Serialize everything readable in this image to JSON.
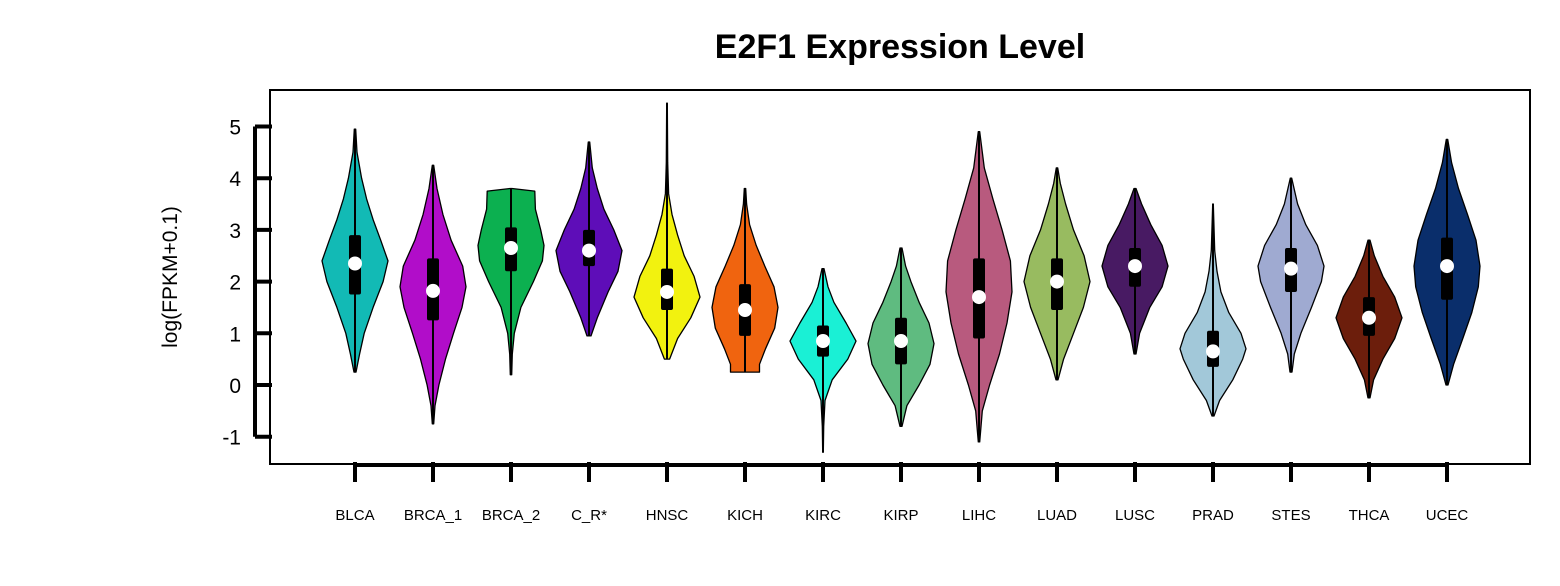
{
  "chart_data": {
    "type": "violin",
    "title": "E2F1 Expression Level",
    "ylabel": "log(FPKM+0.1)",
    "xlabel": "",
    "ylim": [
      -1.55,
      5.7
    ],
    "yticks": [
      -1,
      0,
      1,
      2,
      3,
      4,
      5
    ],
    "categories": [
      "BLCA",
      "BRCA_1",
      "BRCA_2",
      "C_R*",
      "HNSC",
      "KICH",
      "KIRC",
      "KIRP",
      "LIHC",
      "LUAD",
      "LUSC",
      "PRAD",
      "STES",
      "THCA",
      "UCEC"
    ],
    "colors": [
      "#12BAB5",
      "#B10DC9",
      "#0CB050",
      "#5E0DB8",
      "#F2F20F",
      "#F0640F",
      "#1AF0D5",
      "#5FBB80",
      "#B85A7E",
      "#98BB60",
      "#481A63",
      "#A2C8D9",
      "#9FAAD1",
      "#6C1E0C",
      "#0A2E6B"
    ],
    "series": [
      {
        "category": "BLCA",
        "min": 0.25,
        "max": 4.95,
        "q1": 1.75,
        "median": 2.35,
        "q3": 2.9,
        "whisker_low": 0.25,
        "whisker_high": 4.95,
        "density": [
          [
            0.25,
            0.03
          ],
          [
            0.6,
            0.14
          ],
          [
            1.0,
            0.28
          ],
          [
            1.5,
            0.55
          ],
          [
            2.0,
            0.85
          ],
          [
            2.4,
            1.0
          ],
          [
            2.8,
            0.78
          ],
          [
            3.2,
            0.55
          ],
          [
            3.6,
            0.35
          ],
          [
            4.0,
            0.2
          ],
          [
            4.5,
            0.06
          ],
          [
            4.95,
            0.02
          ]
        ]
      },
      {
        "category": "BRCA_1",
        "min": -0.75,
        "max": 4.25,
        "q1": 1.25,
        "median": 1.82,
        "q3": 2.45,
        "whisker_low": -0.75,
        "whisker_high": 4.25,
        "density": [
          [
            -0.75,
            0.02
          ],
          [
            -0.4,
            0.06
          ],
          [
            0.0,
            0.18
          ],
          [
            0.5,
            0.38
          ],
          [
            1.0,
            0.62
          ],
          [
            1.5,
            0.88
          ],
          [
            1.9,
            1.0
          ],
          [
            2.3,
            0.9
          ],
          [
            2.8,
            0.55
          ],
          [
            3.3,
            0.3
          ],
          [
            3.8,
            0.12
          ],
          [
            4.25,
            0.02
          ]
        ]
      },
      {
        "category": "BRCA_2",
        "min": 0.2,
        "max": 3.8,
        "q1": 2.2,
        "median": 2.65,
        "q3": 3.05,
        "whisker_low": 0.2,
        "whisker_high": 3.8,
        "density": [
          [
            0.2,
            0.02
          ],
          [
            0.6,
            0.04
          ],
          [
            1.0,
            0.1
          ],
          [
            1.5,
            0.3
          ],
          [
            2.0,
            0.68
          ],
          [
            2.4,
            0.95
          ],
          [
            2.7,
            1.0
          ],
          [
            3.0,
            0.9
          ],
          [
            3.4,
            0.74
          ],
          [
            3.75,
            0.72
          ],
          [
            3.8,
            0.03
          ]
        ]
      },
      {
        "category": "C_R*",
        "min": 0.95,
        "max": 4.7,
        "q1": 2.3,
        "median": 2.6,
        "q3": 3.0,
        "whisker_low": 0.95,
        "whisker_high": 4.7,
        "density": [
          [
            0.95,
            0.06
          ],
          [
            1.3,
            0.25
          ],
          [
            1.8,
            0.58
          ],
          [
            2.2,
            0.88
          ],
          [
            2.6,
            1.0
          ],
          [
            3.0,
            0.75
          ],
          [
            3.4,
            0.45
          ],
          [
            3.8,
            0.25
          ],
          [
            4.2,
            0.1
          ],
          [
            4.7,
            0.02
          ]
        ]
      },
      {
        "category": "HNSC",
        "min": 0.5,
        "max": 5.45,
        "q1": 1.45,
        "median": 1.8,
        "q3": 2.25,
        "whisker_low": 0.5,
        "whisker_high": 5.45,
        "density": [
          [
            0.5,
            0.08
          ],
          [
            0.9,
            0.32
          ],
          [
            1.3,
            0.72
          ],
          [
            1.7,
            1.0
          ],
          [
            2.1,
            0.82
          ],
          [
            2.5,
            0.52
          ],
          [
            2.9,
            0.32
          ],
          [
            3.3,
            0.15
          ],
          [
            3.7,
            0.05
          ],
          [
            4.3,
            0.02
          ],
          [
            5.45,
            0.01
          ]
        ]
      },
      {
        "category": "KICH",
        "min": 0.25,
        "max": 3.8,
        "q1": 0.95,
        "median": 1.45,
        "q3": 1.95,
        "whisker_low": 0.25,
        "whisker_high": 3.8,
        "density": [
          [
            0.25,
            0.44
          ],
          [
            0.4,
            0.44
          ],
          [
            0.7,
            0.62
          ],
          [
            1.1,
            0.9
          ],
          [
            1.5,
            1.0
          ],
          [
            1.9,
            0.88
          ],
          [
            2.3,
            0.6
          ],
          [
            2.7,
            0.34
          ],
          [
            3.1,
            0.14
          ],
          [
            3.5,
            0.05
          ],
          [
            3.8,
            0.02
          ]
        ]
      },
      {
        "category": "KIRC",
        "min": -1.3,
        "max": 2.25,
        "q1": 0.55,
        "median": 0.85,
        "q3": 1.15,
        "whisker_low": -1.3,
        "whisker_high": 2.25,
        "density": [
          [
            -1.3,
            0.01
          ],
          [
            -0.8,
            0.02
          ],
          [
            -0.3,
            0.06
          ],
          [
            0.1,
            0.28
          ],
          [
            0.5,
            0.75
          ],
          [
            0.85,
            1.0
          ],
          [
            1.2,
            0.7
          ],
          [
            1.6,
            0.33
          ],
          [
            1.9,
            0.15
          ],
          [
            2.25,
            0.03
          ]
        ]
      },
      {
        "category": "KIRP",
        "min": -0.8,
        "max": 2.65,
        "q1": 0.4,
        "median": 0.85,
        "q3": 1.3,
        "whisker_low": -0.8,
        "whisker_high": 2.65,
        "density": [
          [
            -0.8,
            0.03
          ],
          [
            -0.4,
            0.18
          ],
          [
            0.0,
            0.55
          ],
          [
            0.4,
            0.88
          ],
          [
            0.8,
            1.0
          ],
          [
            1.2,
            0.85
          ],
          [
            1.6,
            0.55
          ],
          [
            2.0,
            0.3
          ],
          [
            2.3,
            0.14
          ],
          [
            2.65,
            0.03
          ]
        ]
      },
      {
        "category": "LIHC",
        "min": -1.1,
        "max": 4.9,
        "q1": 0.9,
        "median": 1.7,
        "q3": 2.45,
        "whisker_low": -1.1,
        "whisker_high": 4.9,
        "density": [
          [
            -1.1,
            0.02
          ],
          [
            -0.5,
            0.1
          ],
          [
            0.0,
            0.32
          ],
          [
            0.6,
            0.62
          ],
          [
            1.2,
            0.85
          ],
          [
            1.8,
            1.0
          ],
          [
            2.4,
            0.95
          ],
          [
            3.0,
            0.7
          ],
          [
            3.6,
            0.42
          ],
          [
            4.2,
            0.16
          ],
          [
            4.9,
            0.02
          ]
        ]
      },
      {
        "category": "LUAD",
        "min": 0.1,
        "max": 4.2,
        "q1": 1.45,
        "median": 2.0,
        "q3": 2.45,
        "whisker_low": 0.1,
        "whisker_high": 4.2,
        "density": [
          [
            0.1,
            0.03
          ],
          [
            0.5,
            0.2
          ],
          [
            1.0,
            0.5
          ],
          [
            1.5,
            0.8
          ],
          [
            2.0,
            1.0
          ],
          [
            2.5,
            0.82
          ],
          [
            3.0,
            0.5
          ],
          [
            3.5,
            0.26
          ],
          [
            3.9,
            0.1
          ],
          [
            4.2,
            0.02
          ]
        ]
      },
      {
        "category": "LUSC",
        "min": 0.6,
        "max": 3.8,
        "q1": 1.9,
        "median": 2.3,
        "q3": 2.65,
        "whisker_low": 0.6,
        "whisker_high": 3.8,
        "density": [
          [
            0.6,
            0.03
          ],
          [
            1.0,
            0.14
          ],
          [
            1.5,
            0.45
          ],
          [
            1.9,
            0.82
          ],
          [
            2.3,
            1.0
          ],
          [
            2.7,
            0.82
          ],
          [
            3.1,
            0.48
          ],
          [
            3.5,
            0.2
          ],
          [
            3.8,
            0.03
          ]
        ]
      },
      {
        "category": "PRAD",
        "min": -0.6,
        "max": 3.5,
        "q1": 0.35,
        "median": 0.65,
        "q3": 1.05,
        "whisker_low": -0.6,
        "whisker_high": 3.5,
        "density": [
          [
            -0.6,
            0.03
          ],
          [
            -0.3,
            0.2
          ],
          [
            0.1,
            0.6
          ],
          [
            0.5,
            0.9
          ],
          [
            0.7,
            1.0
          ],
          [
            1.0,
            0.85
          ],
          [
            1.4,
            0.48
          ],
          [
            1.8,
            0.24
          ],
          [
            2.2,
            0.12
          ],
          [
            2.6,
            0.05
          ],
          [
            3.5,
            0.01
          ]
        ]
      },
      {
        "category": "STES",
        "min": 0.25,
        "max": 4.0,
        "q1": 1.8,
        "median": 2.25,
        "q3": 2.65,
        "whisker_low": 0.25,
        "whisker_high": 4.0,
        "density": [
          [
            0.25,
            0.03
          ],
          [
            0.6,
            0.1
          ],
          [
            1.0,
            0.3
          ],
          [
            1.5,
            0.62
          ],
          [
            2.0,
            0.92
          ],
          [
            2.3,
            1.0
          ],
          [
            2.7,
            0.8
          ],
          [
            3.1,
            0.45
          ],
          [
            3.5,
            0.2
          ],
          [
            4.0,
            0.02
          ]
        ]
      },
      {
        "category": "THCA",
        "min": -0.25,
        "max": 2.8,
        "q1": 0.95,
        "median": 1.3,
        "q3": 1.7,
        "whisker_low": -0.25,
        "whisker_high": 2.8,
        "density": [
          [
            -0.25,
            0.03
          ],
          [
            0.1,
            0.14
          ],
          [
            0.5,
            0.42
          ],
          [
            0.9,
            0.78
          ],
          [
            1.3,
            1.0
          ],
          [
            1.7,
            0.78
          ],
          [
            2.1,
            0.42
          ],
          [
            2.5,
            0.16
          ],
          [
            2.8,
            0.03
          ]
        ]
      },
      {
        "category": "UCEC",
        "min": 0.0,
        "max": 4.75,
        "q1": 1.65,
        "median": 2.3,
        "q3": 2.85,
        "whisker_low": 0.0,
        "whisker_high": 4.75,
        "density": [
          [
            0.0,
            0.03
          ],
          [
            0.4,
            0.2
          ],
          [
            0.9,
            0.48
          ],
          [
            1.4,
            0.75
          ],
          [
            1.9,
            0.95
          ],
          [
            2.3,
            1.0
          ],
          [
            2.8,
            0.88
          ],
          [
            3.3,
            0.62
          ],
          [
            3.8,
            0.35
          ],
          [
            4.3,
            0.14
          ],
          [
            4.75,
            0.02
          ]
        ]
      }
    ]
  }
}
